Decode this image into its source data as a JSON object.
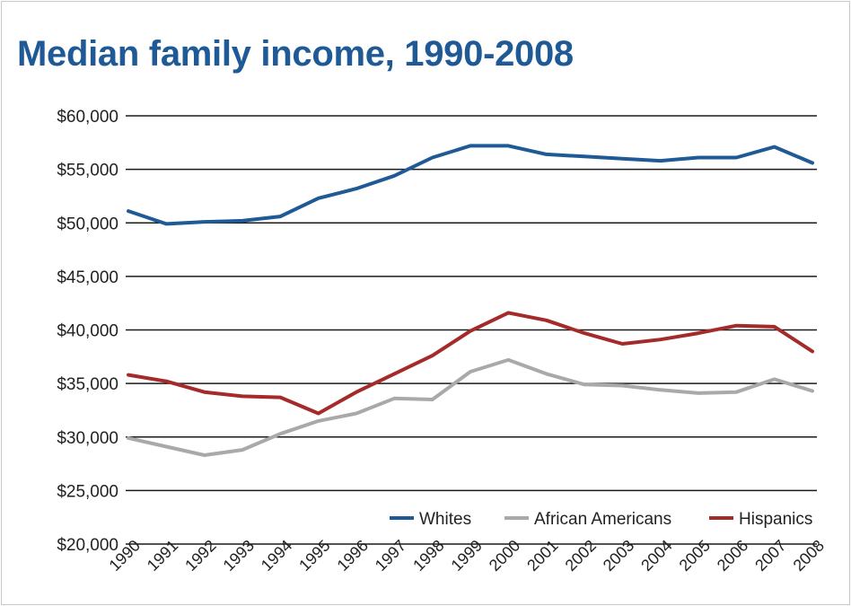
{
  "chart_data": {
    "type": "line",
    "title": "Median family income, 1990-2008",
    "xlabel": "",
    "ylabel": "",
    "ylim": [
      20000,
      60000
    ],
    "ytick_labels": [
      "$20,000",
      "$25,000",
      "$30,000",
      "$35,000",
      "$40,000",
      "$45,000",
      "$50,000",
      "$55,000",
      "$60,000"
    ],
    "categories": [
      "1990",
      "1991",
      "1992",
      "1993",
      "1994",
      "1995",
      "1996",
      "1997",
      "1998",
      "1999",
      "2000",
      "2001",
      "2002",
      "2003",
      "2004",
      "2005",
      "2006",
      "2007",
      "2008"
    ],
    "grid": true,
    "legend_position": "bottom-right",
    "series": [
      {
        "name": "Whites",
        "color": "#1f5a96",
        "values": [
          51100,
          49900,
          50100,
          50200,
          50600,
          52300,
          53200,
          54400,
          56100,
          57200,
          57200,
          56400,
          56200,
          56000,
          55800,
          56100,
          56100,
          57100,
          55600
        ]
      },
      {
        "name": "African Americans",
        "color": "#a9a9a9",
        "values": [
          29900,
          29100,
          28300,
          28800,
          30300,
          31500,
          32200,
          33600,
          33500,
          36100,
          37200,
          35900,
          34900,
          34800,
          34400,
          34100,
          34200,
          35400,
          34300
        ]
      },
      {
        "name": "Hispanics",
        "color": "#a52a2a",
        "values": [
          35800,
          35200,
          34200,
          33800,
          33700,
          32200,
          34200,
          35900,
          37600,
          39900,
          41600,
          40900,
          39700,
          38700,
          39100,
          39700,
          40400,
          40300,
          38000
        ]
      }
    ]
  }
}
